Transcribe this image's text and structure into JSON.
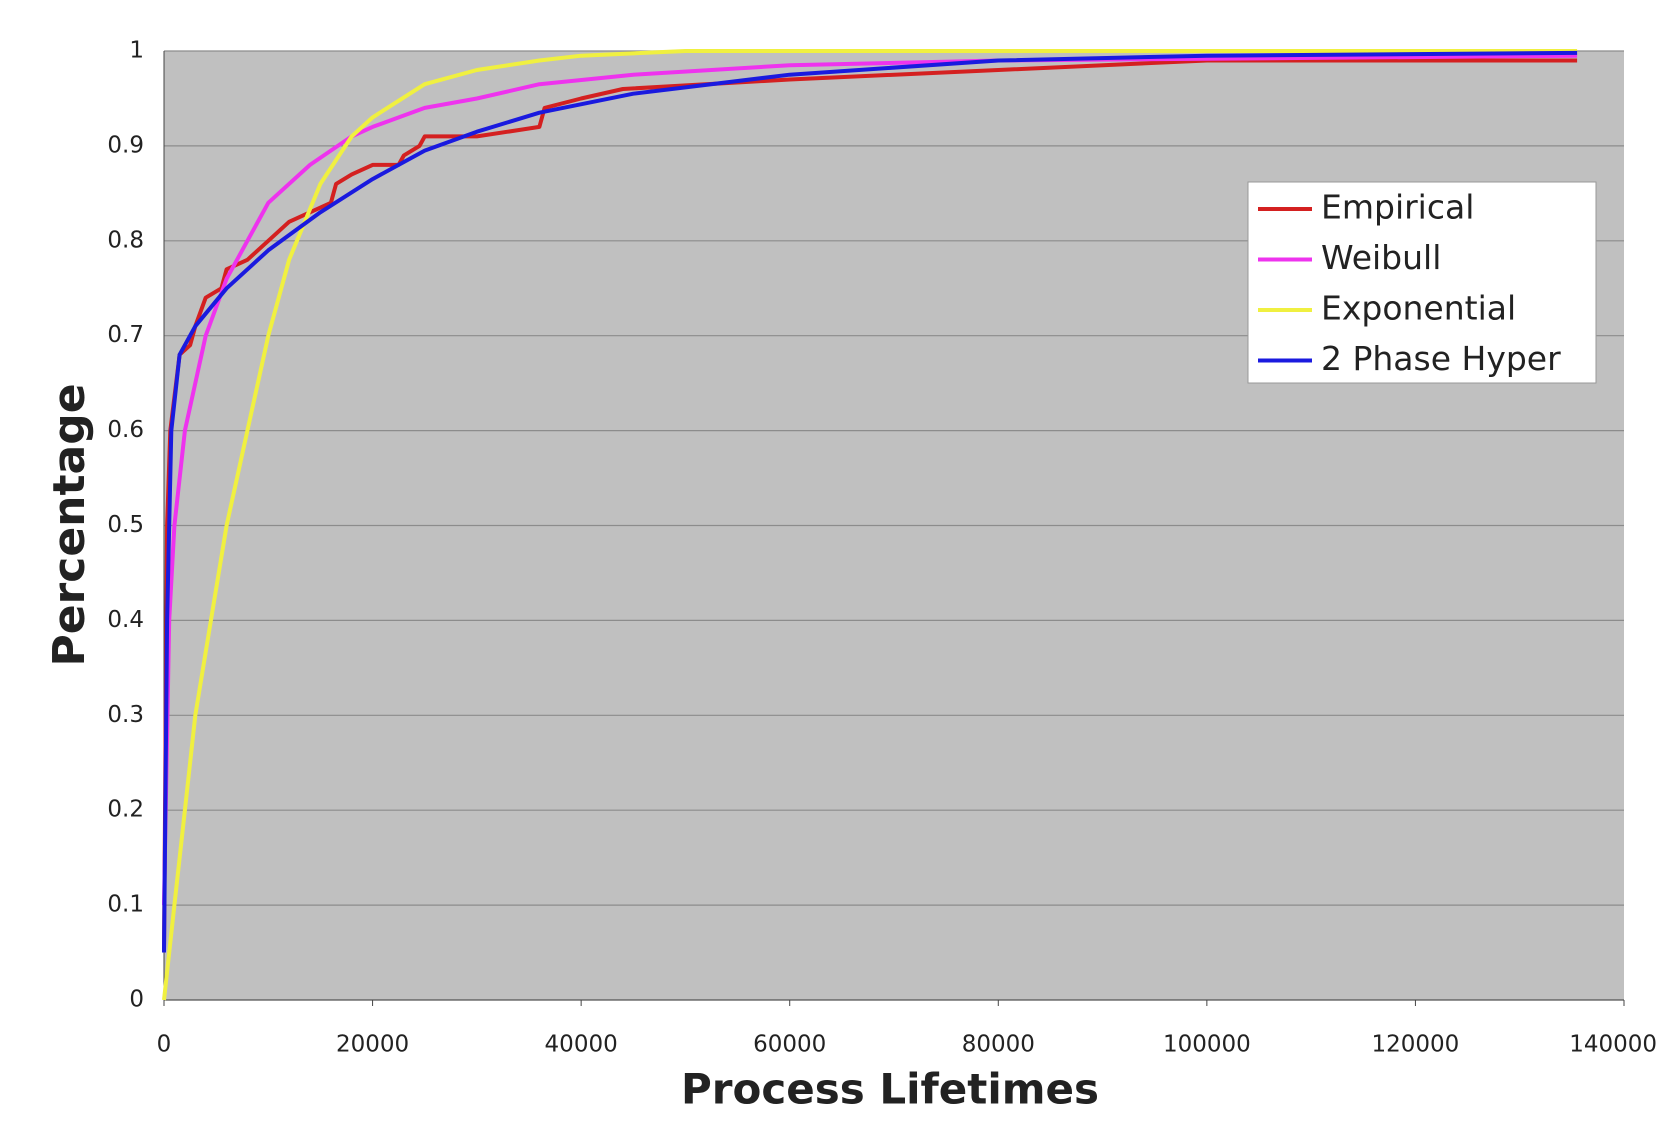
{
  "chart_data": {
    "type": "line",
    "xlabel": "Process Lifetimes",
    "ylabel": "Percentage",
    "xlim": [
      0,
      140000
    ],
    "ylim": [
      0,
      1
    ],
    "xticks": [
      0,
      20000,
      40000,
      60000,
      80000,
      100000,
      120000,
      140000
    ],
    "yticks": [
      0,
      0.1,
      0.2,
      0.3,
      0.4,
      0.5,
      0.6,
      0.7,
      0.8,
      0.9,
      1
    ],
    "grid": true,
    "legend": "upper right",
    "series": [
      {
        "name": "Empirical",
        "color": "#d42020",
        "x": [
          0,
          300,
          600,
          1500,
          2500,
          3000,
          4000,
          5500,
          6000,
          8000,
          10000,
          12000,
          14000,
          16000,
          16500,
          18000,
          20000,
          22500,
          23000,
          24500,
          25000,
          30000,
          36000,
          36500,
          40000,
          44000,
          60000,
          80000,
          100000,
          135500
        ],
        "values": [
          0.05,
          0.5,
          0.6,
          0.68,
          0.69,
          0.71,
          0.74,
          0.75,
          0.77,
          0.78,
          0.8,
          0.82,
          0.83,
          0.84,
          0.86,
          0.87,
          0.88,
          0.88,
          0.89,
          0.9,
          0.91,
          0.91,
          0.92,
          0.94,
          0.95,
          0.96,
          0.97,
          0.98,
          0.99,
          0.99
        ]
      },
      {
        "name": "Weibull",
        "color": "#ee33ee",
        "x": [
          0,
          500,
          1000,
          2000,
          4000,
          6000,
          8000,
          10000,
          14000,
          18000,
          20000,
          25000,
          30000,
          36000,
          45000,
          60000,
          80000,
          135500
        ],
        "values": [
          0.1,
          0.4,
          0.5,
          0.6,
          0.7,
          0.76,
          0.8,
          0.84,
          0.88,
          0.91,
          0.92,
          0.94,
          0.95,
          0.965,
          0.975,
          0.985,
          0.99,
          0.995
        ]
      },
      {
        "name": "Exponential",
        "color": "#f0f040",
        "x": [
          0,
          1000,
          2000,
          3000,
          4500,
          6000,
          8000,
          10000,
          12000,
          15000,
          18000,
          20000,
          25000,
          30000,
          36000,
          40000,
          50000,
          135500
        ],
        "values": [
          0,
          0.1,
          0.2,
          0.3,
          0.4,
          0.5,
          0.6,
          0.7,
          0.78,
          0.86,
          0.91,
          0.93,
          0.965,
          0.98,
          0.99,
          0.995,
          1,
          1
        ]
      },
      {
        "name": "2 Phase Hyper",
        "color": "#1a1adf",
        "x": [
          0,
          300,
          700,
          1500,
          3000,
          6000,
          10000,
          15000,
          20000,
          25000,
          30000,
          36000,
          45000,
          60000,
          80000,
          100000,
          135500
        ],
        "values": [
          0.05,
          0.4,
          0.6,
          0.68,
          0.71,
          0.75,
          0.79,
          0.83,
          0.865,
          0.895,
          0.915,
          0.935,
          0.955,
          0.975,
          0.99,
          0.995,
          0.998
        ]
      }
    ]
  }
}
